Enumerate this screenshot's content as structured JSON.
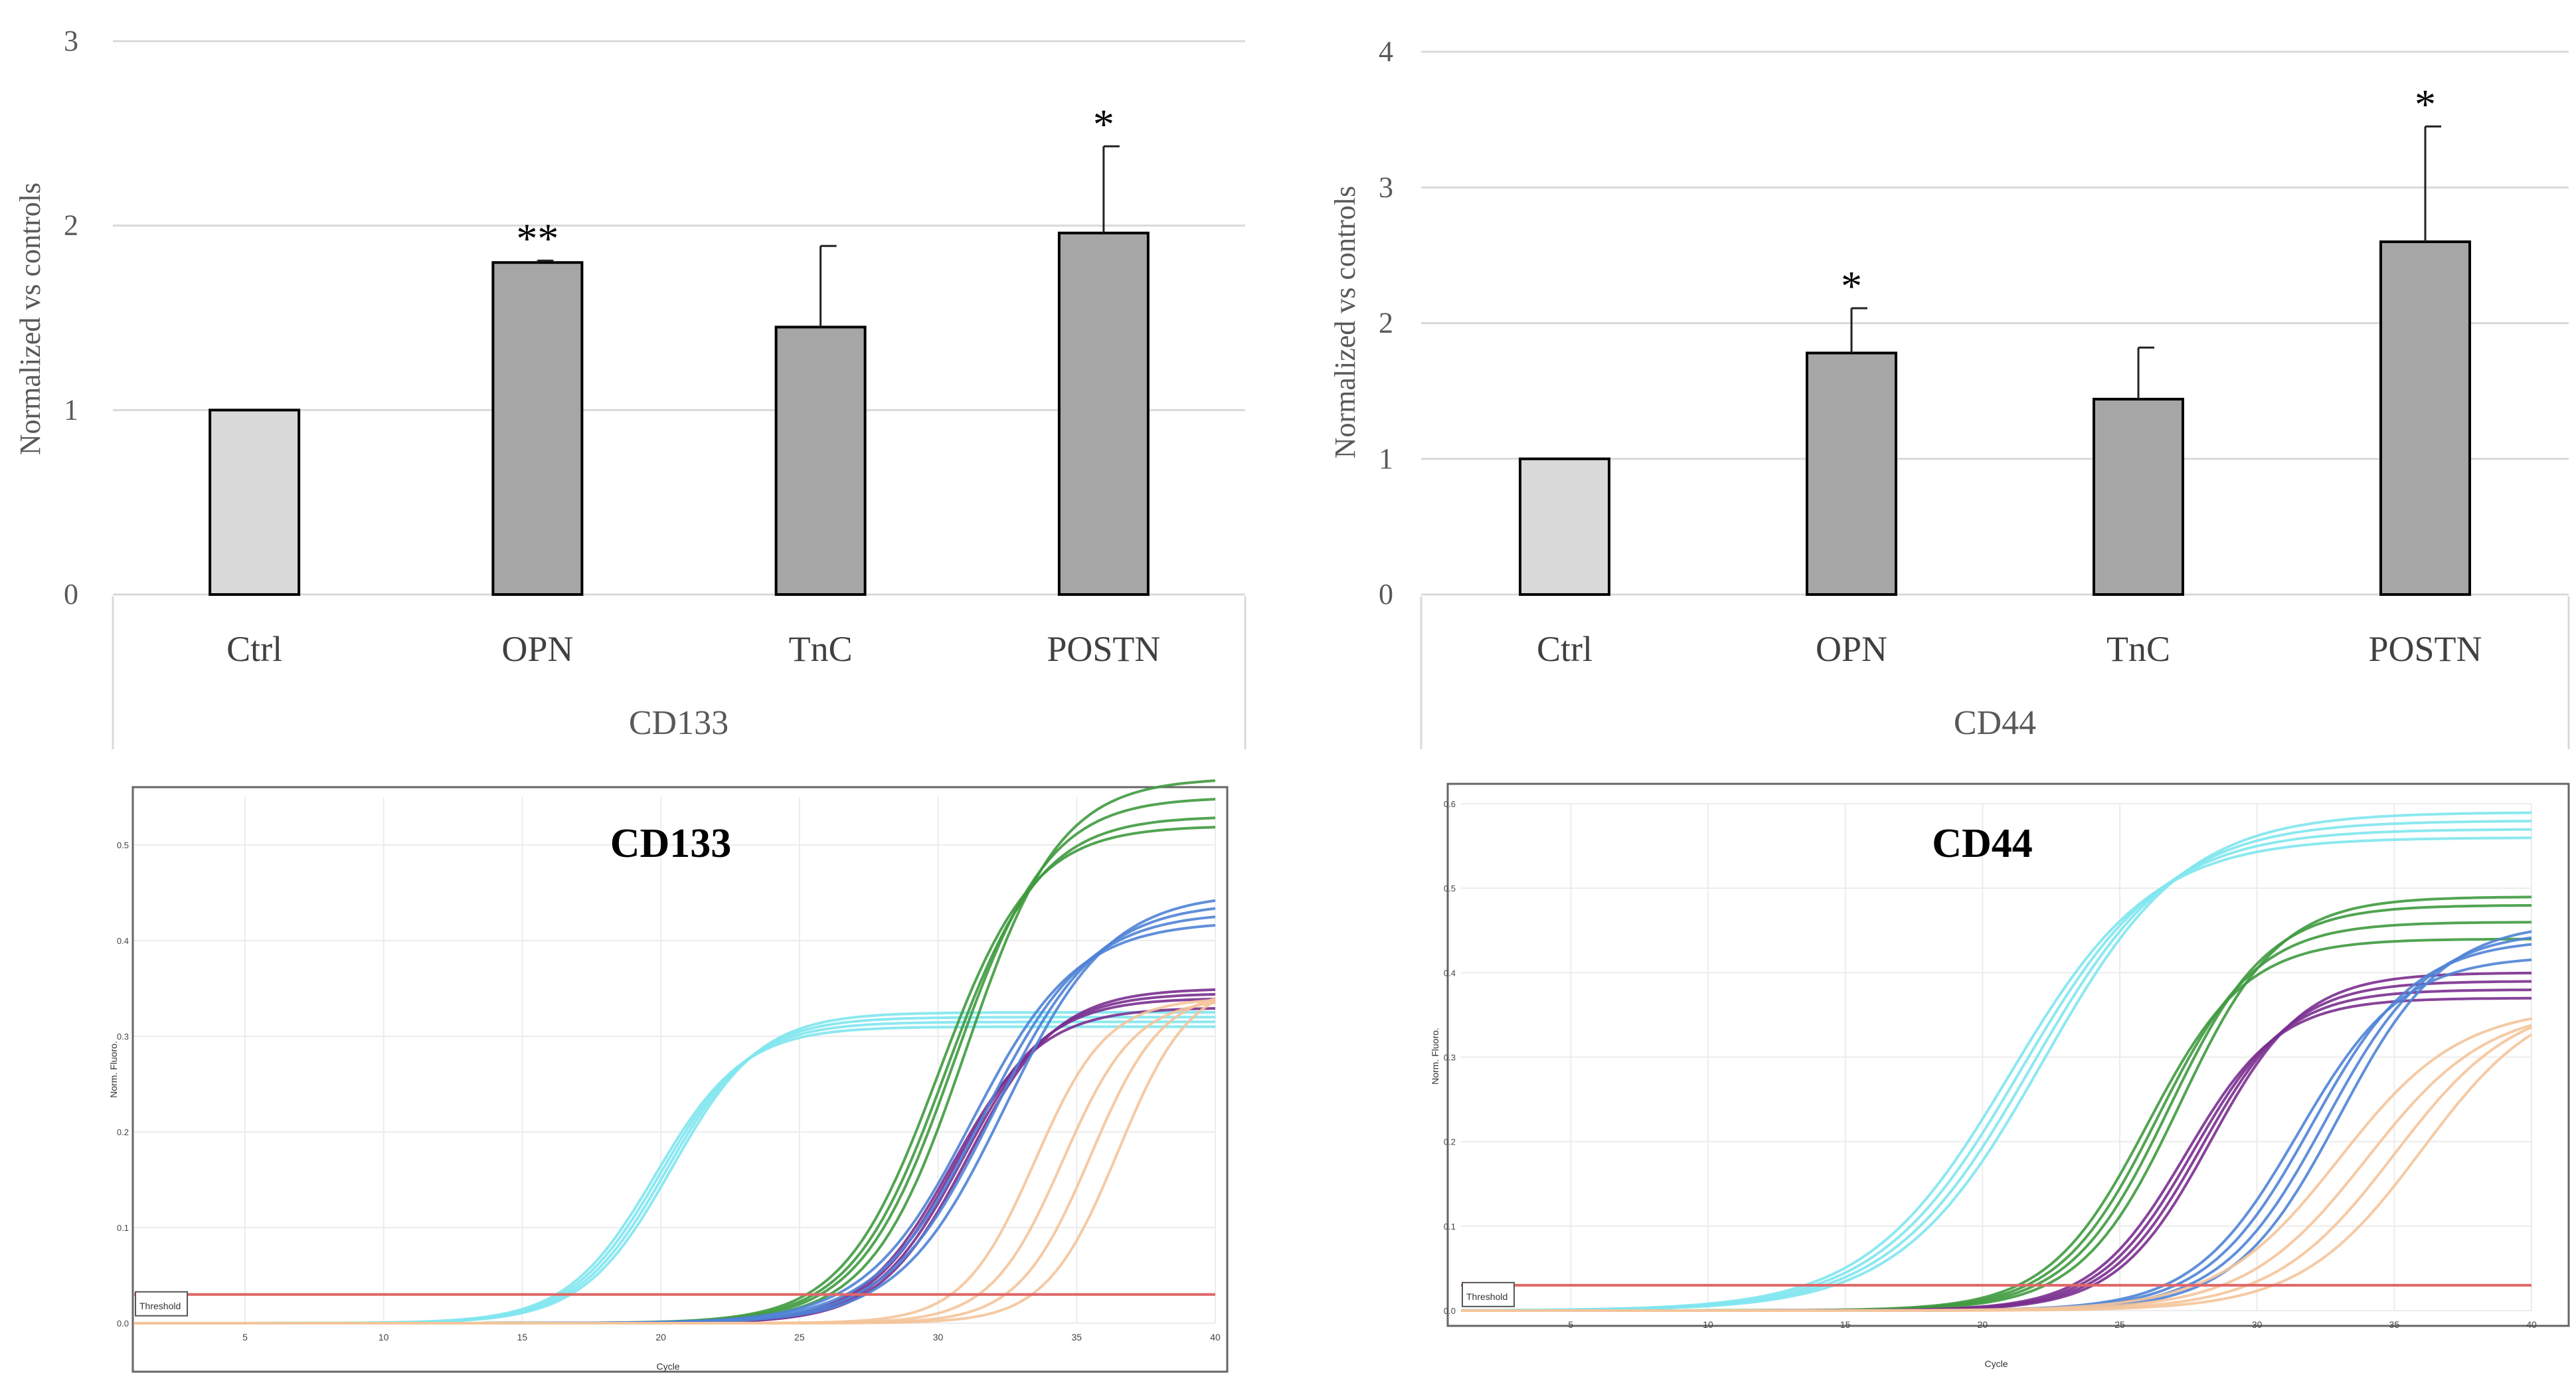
{
  "colors": {
    "ctrl_bar": "#d9d9d9",
    "treat_bar": "#a6a6a6",
    "threshold": "#e06666",
    "cyan": "#7fe6ee",
    "green": "#3f9a3f",
    "purple": "#7a2f8f",
    "blue": "#4f83d6",
    "orange": "#f4c49a"
  },
  "chart_data": [
    {
      "type": "bar",
      "title": "",
      "group_label": "CD133",
      "ylabel": "Normalized vs controls",
      "ylim": [
        0,
        3
      ],
      "yticks": [
        "0",
        "1",
        "2",
        "3"
      ],
      "categories": [
        "Ctrl",
        "OPN",
        "TnC",
        "POSTN"
      ],
      "values": [
        1.0,
        1.8,
        1.45,
        1.96
      ],
      "errors": [
        0.0,
        0.01,
        0.44,
        0.47
      ],
      "significance": [
        "",
        "**",
        "",
        "*"
      ]
    },
    {
      "type": "bar",
      "title": "",
      "group_label": "CD44",
      "ylabel": "Normalized vs controls",
      "ylim": [
        0,
        4
      ],
      "yticks": [
        "0",
        "1",
        "2",
        "3",
        "4"
      ],
      "categories": [
        "Ctrl",
        "OPN",
        "TnC",
        "POSTN"
      ],
      "values": [
        1.0,
        1.78,
        1.44,
        2.6
      ],
      "errors": [
        0.0,
        0.33,
        0.38,
        0.85
      ],
      "significance": [
        "",
        "*",
        "",
        "*"
      ]
    },
    {
      "type": "line",
      "title": "CD133",
      "xlabel": "Cycle",
      "ylabel": "Norm. Fluoro.",
      "threshold_label": "Threshold",
      "threshold": 0.03,
      "xlim": [
        1,
        40
      ],
      "ylim": [
        0,
        0.55
      ],
      "xticks": [
        "5",
        "10",
        "15",
        "20",
        "25",
        "30",
        "35",
        "40"
      ],
      "yticks": [
        "0.0",
        "0.1",
        "0.2",
        "0.3",
        "0.4",
        "0.5"
      ],
      "series": [
        {
          "name": "cyan",
          "color_key": "cyan",
          "midpoints": [
            19.8,
            20.0,
            20.2,
            20.4
          ],
          "plateaus": [
            0.31,
            0.315,
            0.32,
            0.325
          ],
          "slope": 1.6
        },
        {
          "name": "green",
          "color_key": "green",
          "midpoints": [
            30.0,
            30.3,
            30.6,
            31.0
          ],
          "plateaus": [
            0.52,
            0.53,
            0.55,
            0.57
          ],
          "slope": 1.7
        },
        {
          "name": "purple",
          "color_key": "purple",
          "midpoints": [
            30.5,
            30.7,
            30.9,
            31.1
          ],
          "plateaus": [
            0.33,
            0.34,
            0.345,
            0.35
          ],
          "slope": 1.6
        },
        {
          "name": "blue",
          "color_key": "blue",
          "midpoints": [
            31.2,
            31.6,
            32.0,
            32.4
          ],
          "plateaus": [
            0.42,
            0.43,
            0.44,
            0.45
          ],
          "slope": 1.9
        },
        {
          "name": "orange",
          "color_key": "orange",
          "midpoints": [
            33.5,
            34.5,
            35.5,
            36.5
          ],
          "plateaus": [
            0.34,
            0.34,
            0.35,
            0.36
          ],
          "slope": 1.3
        }
      ]
    },
    {
      "type": "line",
      "title": "CD44",
      "xlabel": "Cycle",
      "ylabel": "Norm. Fluoro.",
      "threshold_label": "Threshold",
      "threshold": 0.03,
      "xlim": [
        1,
        40
      ],
      "ylim": [
        0,
        0.6
      ],
      "xticks": [
        "5",
        "10",
        "15",
        "20",
        "25",
        "30",
        "35",
        "40"
      ],
      "yticks": [
        "0.0",
        "0.1",
        "0.2",
        "0.3",
        "0.4",
        "0.5",
        "0.6"
      ],
      "series": [
        {
          "name": "cyan",
          "color_key": "cyan",
          "midpoints": [
            21.0,
            21.4,
            21.8,
            22.2
          ],
          "plateaus": [
            0.56,
            0.57,
            0.58,
            0.59
          ],
          "slope": 2.6
        },
        {
          "name": "green",
          "color_key": "green",
          "midpoints": [
            26.0,
            26.4,
            26.8,
            27.2
          ],
          "plateaus": [
            0.44,
            0.46,
            0.48,
            0.49
          ],
          "slope": 1.8
        },
        {
          "name": "purple",
          "color_key": "purple",
          "midpoints": [
            27.4,
            27.7,
            28.0,
            28.3
          ],
          "plateaus": [
            0.37,
            0.38,
            0.39,
            0.4
          ],
          "slope": 1.7
        },
        {
          "name": "blue",
          "color_key": "blue",
          "midpoints": [
            31.5,
            32.0,
            32.5,
            33.0
          ],
          "plateaus": [
            0.42,
            0.44,
            0.45,
            0.46
          ],
          "slope": 1.9
        },
        {
          "name": "orange",
          "color_key": "orange",
          "midpoints": [
            33.0,
            34.0,
            35.0,
            36.0
          ],
          "plateaus": [
            0.36,
            0.36,
            0.37,
            0.38
          ],
          "slope": 2.2
        }
      ]
    }
  ]
}
